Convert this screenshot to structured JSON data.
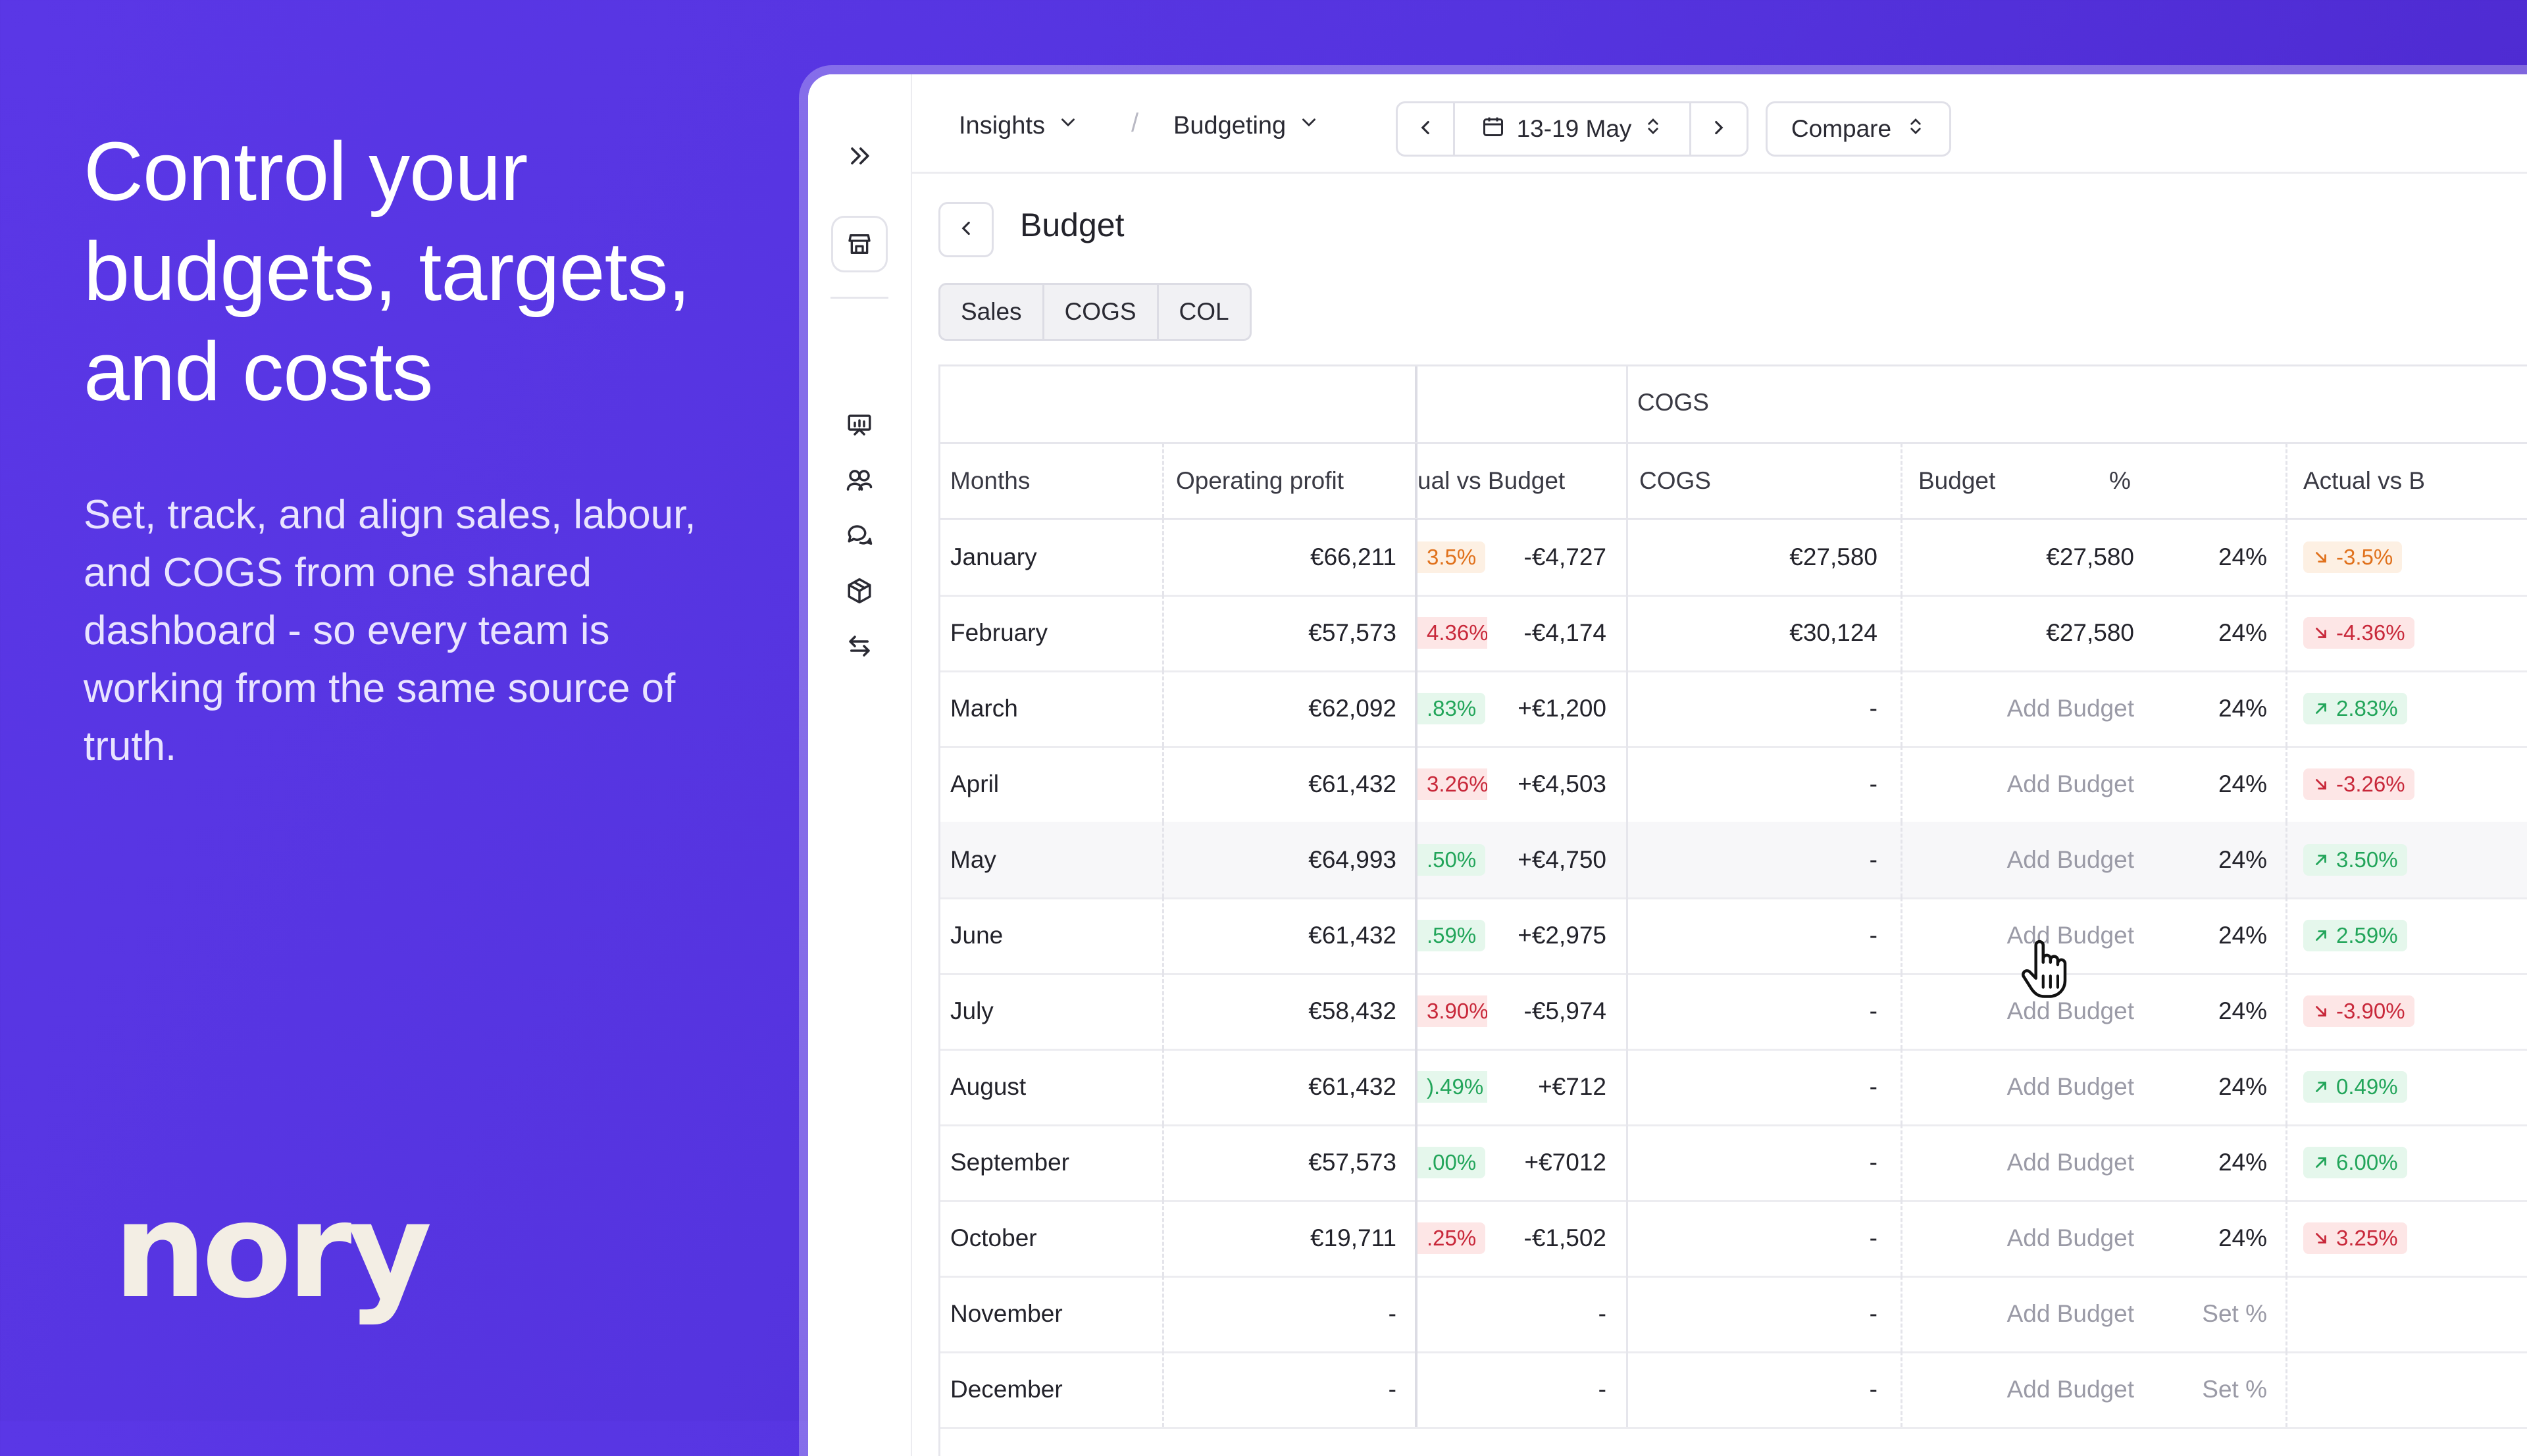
{
  "marketing": {
    "headline_lines": [
      "Control your",
      "budgets, targets,",
      "and costs"
    ],
    "subcopy": "Set, track, and align sales, labour, and COGS from one shared dashboard - so every team is working from the same source of truth.",
    "logo_text": "nory"
  },
  "app": {
    "breadcrumbs": [
      "Insights",
      "Budgeting"
    ],
    "date_range": "13-19 May",
    "compare_label": "Compare",
    "page_title": "Budget",
    "tabs": [
      "Sales",
      "COGS",
      "COL"
    ],
    "table": {
      "group_header": "COGS",
      "columns": {
        "months": "Months",
        "operating_profit": "Operating profit",
        "actual_vs_budget_cut": "ual vs Budget",
        "cogs": "COGS",
        "budget": "Budget",
        "pct": "%",
        "actual_vs_budget_cut2": "Actual vs B"
      },
      "rows": [
        {
          "month": "January",
          "op": "€66,211",
          "pct1": "3.5%",
          "pct1_type": "warn",
          "avb": "-€4,727",
          "cogs": "€27,580",
          "budget": "€27,580",
          "budget_muted": false,
          "pct": "24%",
          "pct_muted": false,
          "act": "-3.5%",
          "act_type": "warn",
          "act_dir": "down"
        },
        {
          "month": "February",
          "op": "€57,573",
          "pct1": "4.36%",
          "pct1_type": "neg",
          "avb": "-€4,174",
          "cogs": "€30,124",
          "budget": "€27,580",
          "budget_muted": false,
          "pct": "24%",
          "pct_muted": false,
          "act": "-4.36%",
          "act_type": "neg",
          "act_dir": "down"
        },
        {
          "month": "March",
          "op": "€62,092",
          "pct1": ".83%",
          "pct1_type": "pos",
          "avb": "+€1,200",
          "cogs": "-",
          "budget": "Add Budget",
          "budget_muted": true,
          "pct": "24%",
          "pct_muted": false,
          "act": "2.83%",
          "act_type": "pos",
          "act_dir": "up"
        },
        {
          "month": "April",
          "op": "€61,432",
          "pct1": "3.26%",
          "pct1_type": "neg",
          "avb": "+€4,503",
          "cogs": "-",
          "budget": "Add Budget",
          "budget_muted": true,
          "pct": "24%",
          "pct_muted": false,
          "act": "-3.26%",
          "act_type": "neg",
          "act_dir": "down"
        },
        {
          "month": "May",
          "op": "€64,993",
          "pct1": ".50%",
          "pct1_type": "pos",
          "avb": "+€4,750",
          "cogs": "-",
          "budget": "Add Budget",
          "budget_muted": true,
          "pct": "24%",
          "pct_muted": false,
          "act": "3.50%",
          "act_type": "pos",
          "act_dir": "up",
          "highlight": true
        },
        {
          "month": "June",
          "op": "€61,432",
          "pct1": ".59%",
          "pct1_type": "pos",
          "avb": "+€2,975",
          "cogs": "-",
          "budget": "Add Budget",
          "budget_muted": true,
          "pct": "24%",
          "pct_muted": false,
          "act": "2.59%",
          "act_type": "pos",
          "act_dir": "up"
        },
        {
          "month": "July",
          "op": "€58,432",
          "pct1": "3.90%",
          "pct1_type": "neg",
          "avb": "-€5,974",
          "cogs": "-",
          "budget": "Add Budget",
          "budget_muted": true,
          "pct": "24%",
          "pct_muted": false,
          "act": "-3.90%",
          "act_type": "neg",
          "act_dir": "down"
        },
        {
          "month": "August",
          "op": "€61,432",
          "pct1": ").49%",
          "pct1_type": "pos",
          "avb": "+€712",
          "cogs": "-",
          "budget": "Add Budget",
          "budget_muted": true,
          "pct": "24%",
          "pct_muted": false,
          "act": "0.49%",
          "act_type": "pos",
          "act_dir": "up"
        },
        {
          "month": "September",
          "op": "€57,573",
          "pct1": ".00%",
          "pct1_type": "pos",
          "avb": "+€7012",
          "cogs": "-",
          "budget": "Add Budget",
          "budget_muted": true,
          "pct": "24%",
          "pct_muted": false,
          "act": "6.00%",
          "act_type": "pos",
          "act_dir": "up"
        },
        {
          "month": "October",
          "op": "€19,711",
          "pct1": ".25%",
          "pct1_type": "neg",
          "avb": "-€1,502",
          "cogs": "-",
          "budget": "Add Budget",
          "budget_muted": true,
          "pct": "24%",
          "pct_muted": false,
          "act": "3.25%",
          "act_type": "neg",
          "act_dir": "down"
        },
        {
          "month": "November",
          "op": "-",
          "pct1": "",
          "pct1_type": "",
          "avb": "-",
          "cogs": "-",
          "budget": "Add Budget",
          "budget_muted": true,
          "pct": "Set %",
          "pct_muted": true,
          "act": "",
          "act_type": "",
          "act_dir": ""
        },
        {
          "month": "December",
          "op": "-",
          "pct1": "",
          "pct1_type": "",
          "avb": "-",
          "cogs": "-",
          "budget": "Add Budget",
          "budget_muted": true,
          "pct": "Set %",
          "pct_muted": true,
          "act": "",
          "act_type": "",
          "act_dir": ""
        }
      ]
    }
  },
  "colors": {
    "background": "#5534df",
    "negative": "#c8283a",
    "warning": "#e0711c",
    "positive": "#22a55a"
  },
  "icons": [
    "expand-icon",
    "store-icon",
    "presentation-icon",
    "users-icon",
    "chat-icon",
    "package-icon",
    "swap-icon",
    "chevron-down-icon",
    "chevron-left-icon",
    "chevron-right-icon",
    "calendar-icon",
    "up-down-icon",
    "arrow-up-right-icon",
    "arrow-down-right-icon",
    "hand-cursor-icon"
  ]
}
